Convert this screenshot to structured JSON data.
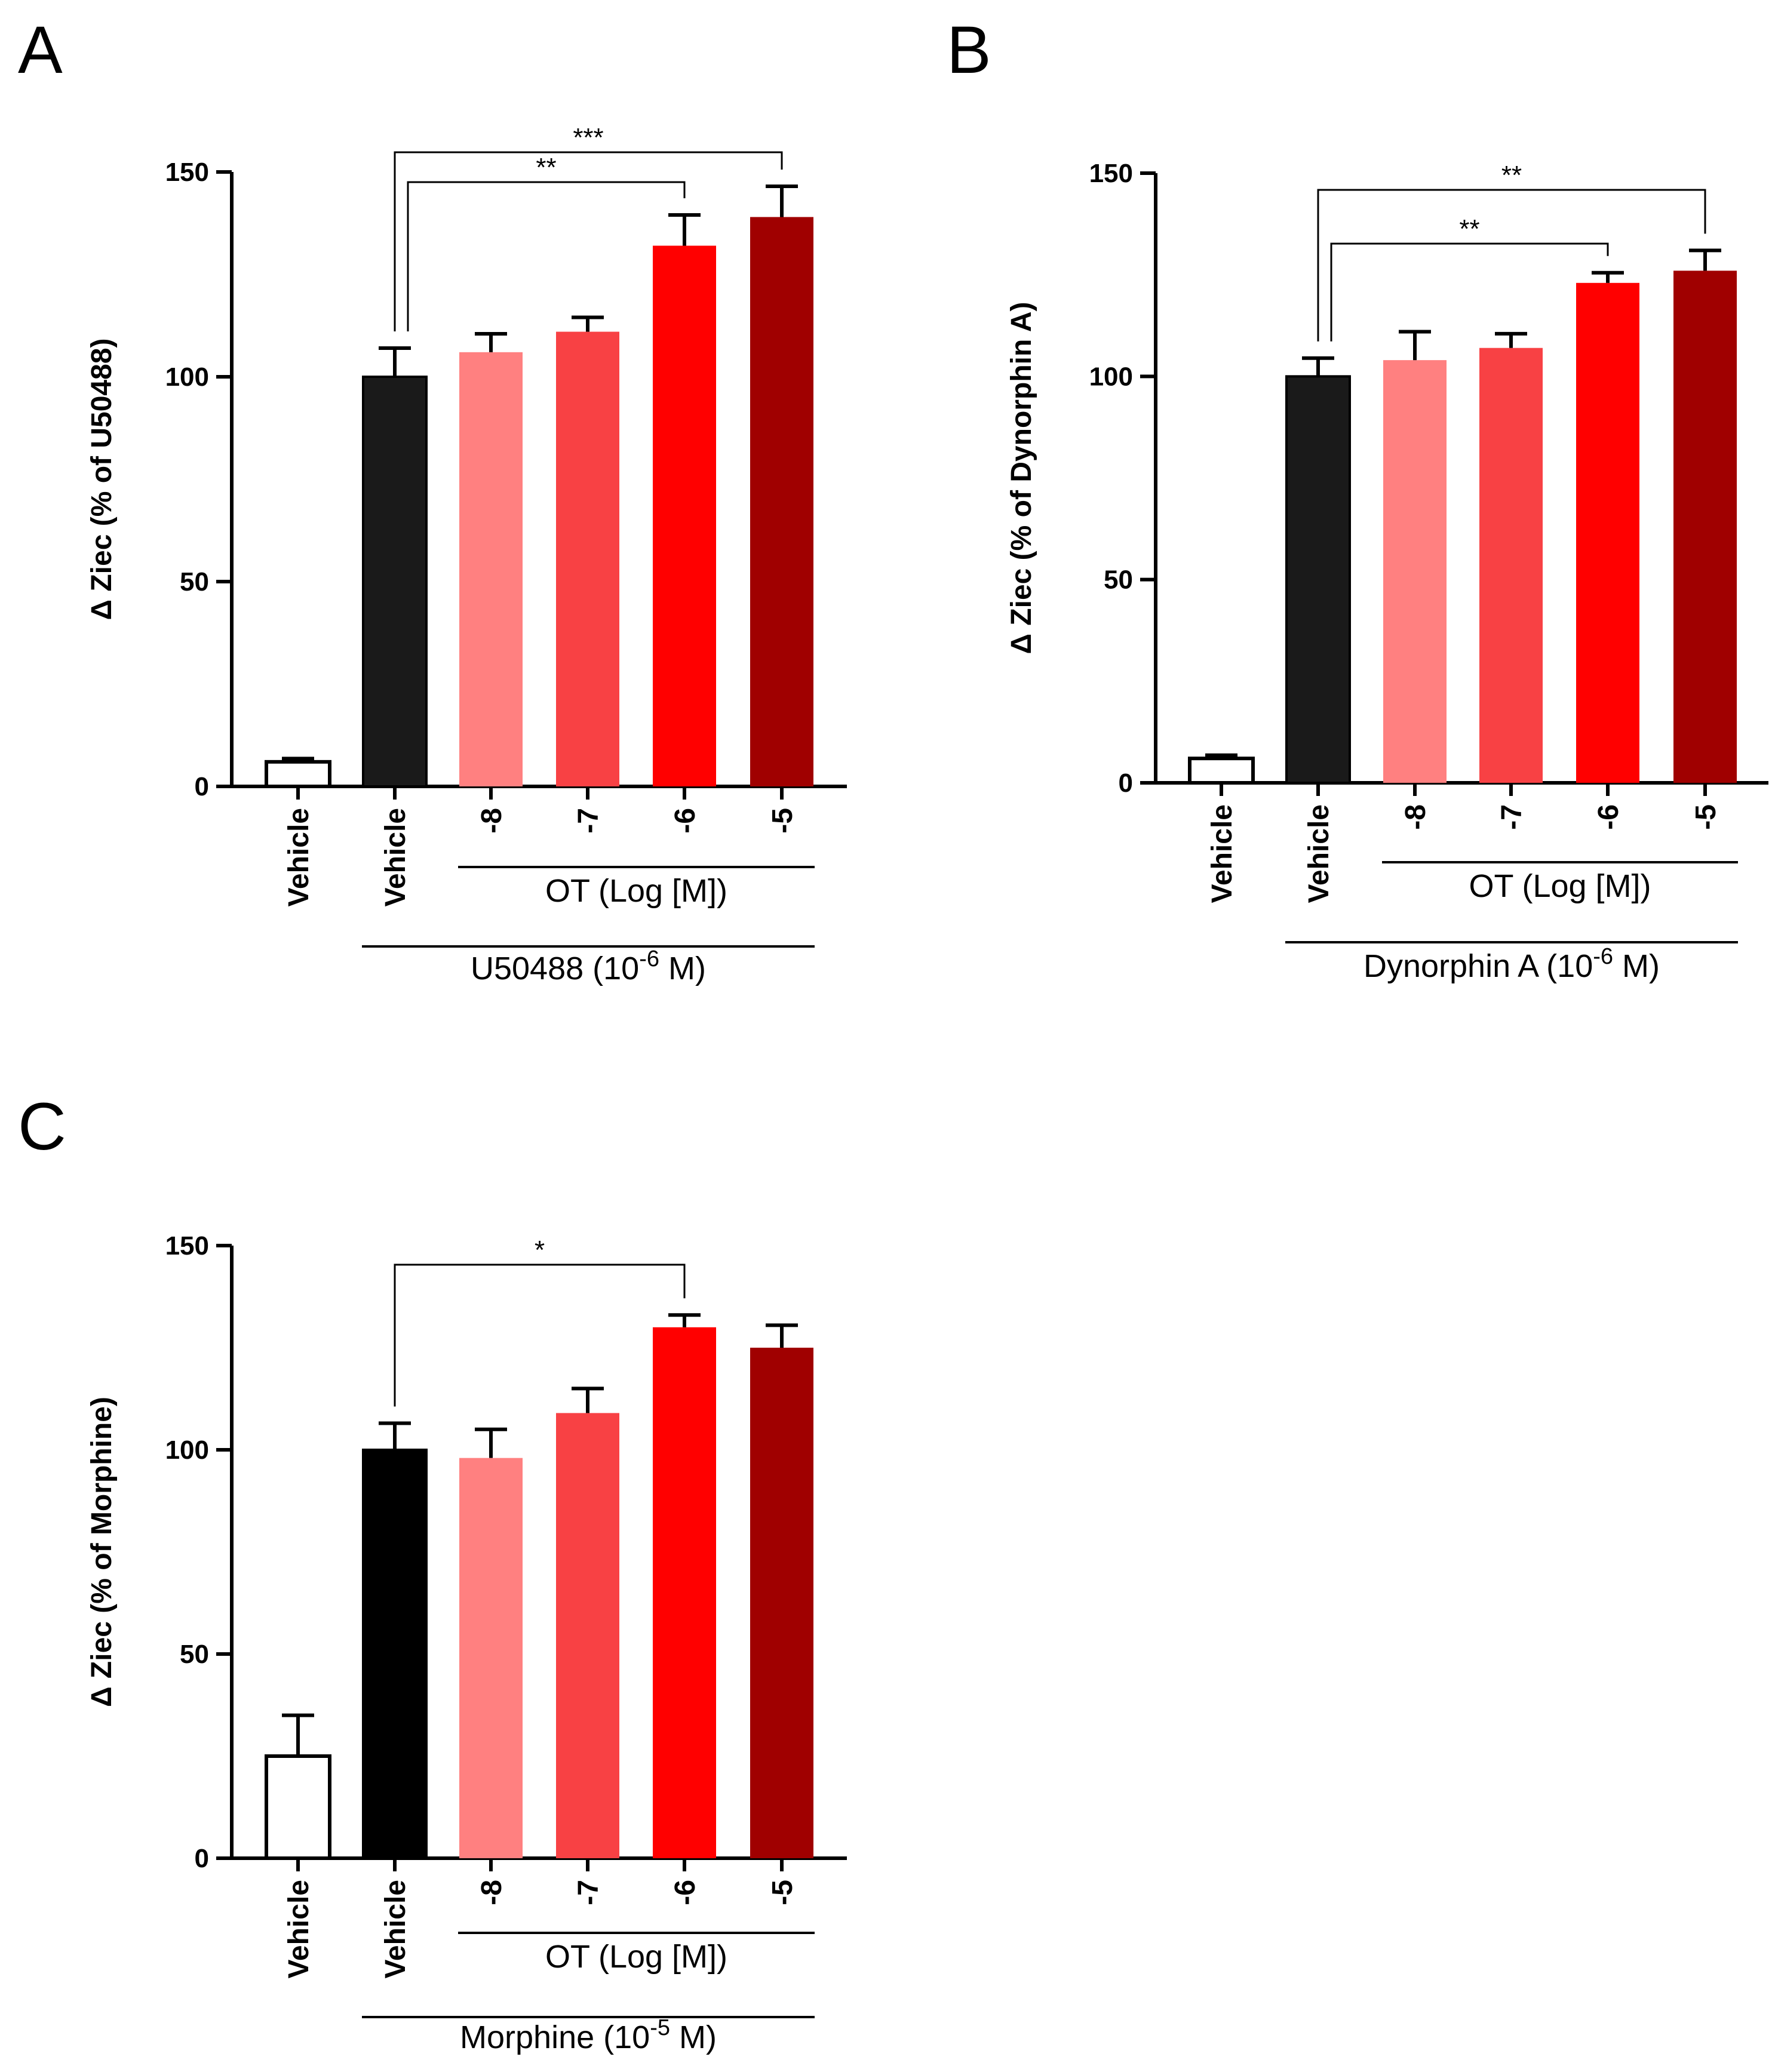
{
  "figure": {
    "colors": {
      "vehicle_fill": "#ffffff",
      "agonist_fill": "#1a1a1a",
      "ot_-8": "#ff8080",
      "ot_-7": "#f84144",
      "ot_-6": "#ff0000",
      "ot_-5": "#a00000"
    }
  },
  "chart_data": [
    {
      "panel": "A",
      "type": "bar",
      "ylabel": "Δ Ziec (% of U50488)",
      "ylim": [
        0,
        150
      ],
      "yticks": [
        "0",
        "50",
        "100",
        "150"
      ],
      "categories": [
        "Vehicle",
        "Vehicle",
        "-8",
        "-7",
        "-6",
        "-5"
      ],
      "values": [
        6,
        100,
        106,
        111,
        132,
        139
      ],
      "errors": [
        0.8,
        7,
        4.5,
        3.5,
        7.5,
        7.5
      ],
      "colors": [
        "#ffffff",
        "#1a1a1a",
        "#ff8080",
        "#f84144",
        "#ff0000",
        "#a00000"
      ],
      "group_inner": "OT (Log [M])",
      "group_outer": {
        "prefix": "U50488 (10",
        "exp": "-6",
        "suffix": " M)"
      },
      "comparisons": [
        {
          "from": 1,
          "to": 4,
          "label": "**"
        },
        {
          "from": 1,
          "to": 5,
          "label": "***"
        }
      ]
    },
    {
      "panel": "B",
      "type": "bar",
      "ylabel": "Δ Ziec (% of Dynorphin A)",
      "ylim": [
        0,
        150
      ],
      "yticks": [
        "0",
        "50",
        "100",
        "150"
      ],
      "categories": [
        "Vehicle",
        "Vehicle",
        "-8",
        "-7",
        "-6",
        "-5"
      ],
      "values": [
        6,
        100,
        104,
        107,
        123,
        126
      ],
      "errors": [
        0.8,
        4.5,
        7,
        3.5,
        2.5,
        5
      ],
      "colors": [
        "#ffffff",
        "#1a1a1a",
        "#ff8080",
        "#f84144",
        "#ff0000",
        "#a00000"
      ],
      "group_inner": "OT (Log [M])",
      "group_outer": {
        "prefix": "Dynorphin A (10",
        "exp": "-6",
        "suffix": " M)"
      },
      "comparisons": [
        {
          "from": 1,
          "to": 4,
          "label": "**"
        },
        {
          "from": 1,
          "to": 5,
          "label": "**"
        }
      ]
    },
    {
      "panel": "C",
      "type": "bar",
      "ylabel": "Δ Ziec (% of Morphine)",
      "ylim": [
        0,
        150
      ],
      "yticks": [
        "0",
        "50",
        "100",
        "150"
      ],
      "categories": [
        "Vehicle",
        "Vehicle",
        "-8",
        "-7",
        "-6",
        "-5"
      ],
      "values": [
        25,
        100,
        98,
        109,
        130,
        125
      ],
      "errors": [
        10,
        6.5,
        7,
        6,
        3,
        5.5
      ],
      "colors": [
        "#ffffff",
        "#000000",
        "#ff8080",
        "#f84144",
        "#ff0000",
        "#a00000"
      ],
      "group_inner": "OT (Log [M])",
      "group_outer": {
        "prefix": "Morphine (10",
        "exp": "-5",
        "suffix": " M)"
      },
      "comparisons": [
        {
          "from": 1,
          "to": 4,
          "label": "*"
        }
      ]
    }
  ]
}
